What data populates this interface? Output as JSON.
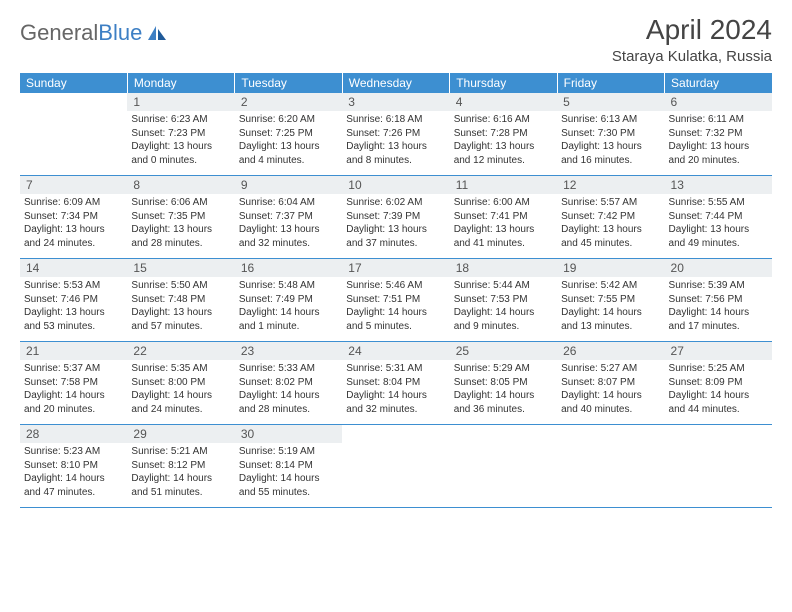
{
  "logo": {
    "text1": "General",
    "text2": "Blue"
  },
  "title": "April 2024",
  "location": "Staraya Kulatka, Russia",
  "headers": [
    "Sunday",
    "Monday",
    "Tuesday",
    "Wednesday",
    "Thursday",
    "Friday",
    "Saturday"
  ],
  "colors": {
    "headerBg": "#3d8fd1",
    "headerText": "#ffffff",
    "dayNumBg": "#eceff1",
    "rowBorder": "#3d8fd1",
    "logoBlue": "#3d7fc4"
  },
  "days": [
    {
      "n": "1",
      "sunrise": "Sunrise: 6:23 AM",
      "sunset": "Sunset: 7:23 PM",
      "daylight": "Daylight: 13 hours and 0 minutes."
    },
    {
      "n": "2",
      "sunrise": "Sunrise: 6:20 AM",
      "sunset": "Sunset: 7:25 PM",
      "daylight": "Daylight: 13 hours and 4 minutes."
    },
    {
      "n": "3",
      "sunrise": "Sunrise: 6:18 AM",
      "sunset": "Sunset: 7:26 PM",
      "daylight": "Daylight: 13 hours and 8 minutes."
    },
    {
      "n": "4",
      "sunrise": "Sunrise: 6:16 AM",
      "sunset": "Sunset: 7:28 PM",
      "daylight": "Daylight: 13 hours and 12 minutes."
    },
    {
      "n": "5",
      "sunrise": "Sunrise: 6:13 AM",
      "sunset": "Sunset: 7:30 PM",
      "daylight": "Daylight: 13 hours and 16 minutes."
    },
    {
      "n": "6",
      "sunrise": "Sunrise: 6:11 AM",
      "sunset": "Sunset: 7:32 PM",
      "daylight": "Daylight: 13 hours and 20 minutes."
    },
    {
      "n": "7",
      "sunrise": "Sunrise: 6:09 AM",
      "sunset": "Sunset: 7:34 PM",
      "daylight": "Daylight: 13 hours and 24 minutes."
    },
    {
      "n": "8",
      "sunrise": "Sunrise: 6:06 AM",
      "sunset": "Sunset: 7:35 PM",
      "daylight": "Daylight: 13 hours and 28 minutes."
    },
    {
      "n": "9",
      "sunrise": "Sunrise: 6:04 AM",
      "sunset": "Sunset: 7:37 PM",
      "daylight": "Daylight: 13 hours and 32 minutes."
    },
    {
      "n": "10",
      "sunrise": "Sunrise: 6:02 AM",
      "sunset": "Sunset: 7:39 PM",
      "daylight": "Daylight: 13 hours and 37 minutes."
    },
    {
      "n": "11",
      "sunrise": "Sunrise: 6:00 AM",
      "sunset": "Sunset: 7:41 PM",
      "daylight": "Daylight: 13 hours and 41 minutes."
    },
    {
      "n": "12",
      "sunrise": "Sunrise: 5:57 AM",
      "sunset": "Sunset: 7:42 PM",
      "daylight": "Daylight: 13 hours and 45 minutes."
    },
    {
      "n": "13",
      "sunrise": "Sunrise: 5:55 AM",
      "sunset": "Sunset: 7:44 PM",
      "daylight": "Daylight: 13 hours and 49 minutes."
    },
    {
      "n": "14",
      "sunrise": "Sunrise: 5:53 AM",
      "sunset": "Sunset: 7:46 PM",
      "daylight": "Daylight: 13 hours and 53 minutes."
    },
    {
      "n": "15",
      "sunrise": "Sunrise: 5:50 AM",
      "sunset": "Sunset: 7:48 PM",
      "daylight": "Daylight: 13 hours and 57 minutes."
    },
    {
      "n": "16",
      "sunrise": "Sunrise: 5:48 AM",
      "sunset": "Sunset: 7:49 PM",
      "daylight": "Daylight: 14 hours and 1 minute."
    },
    {
      "n": "17",
      "sunrise": "Sunrise: 5:46 AM",
      "sunset": "Sunset: 7:51 PM",
      "daylight": "Daylight: 14 hours and 5 minutes."
    },
    {
      "n": "18",
      "sunrise": "Sunrise: 5:44 AM",
      "sunset": "Sunset: 7:53 PM",
      "daylight": "Daylight: 14 hours and 9 minutes."
    },
    {
      "n": "19",
      "sunrise": "Sunrise: 5:42 AM",
      "sunset": "Sunset: 7:55 PM",
      "daylight": "Daylight: 14 hours and 13 minutes."
    },
    {
      "n": "20",
      "sunrise": "Sunrise: 5:39 AM",
      "sunset": "Sunset: 7:56 PM",
      "daylight": "Daylight: 14 hours and 17 minutes."
    },
    {
      "n": "21",
      "sunrise": "Sunrise: 5:37 AM",
      "sunset": "Sunset: 7:58 PM",
      "daylight": "Daylight: 14 hours and 20 minutes."
    },
    {
      "n": "22",
      "sunrise": "Sunrise: 5:35 AM",
      "sunset": "Sunset: 8:00 PM",
      "daylight": "Daylight: 14 hours and 24 minutes."
    },
    {
      "n": "23",
      "sunrise": "Sunrise: 5:33 AM",
      "sunset": "Sunset: 8:02 PM",
      "daylight": "Daylight: 14 hours and 28 minutes."
    },
    {
      "n": "24",
      "sunrise": "Sunrise: 5:31 AM",
      "sunset": "Sunset: 8:04 PM",
      "daylight": "Daylight: 14 hours and 32 minutes."
    },
    {
      "n": "25",
      "sunrise": "Sunrise: 5:29 AM",
      "sunset": "Sunset: 8:05 PM",
      "daylight": "Daylight: 14 hours and 36 minutes."
    },
    {
      "n": "26",
      "sunrise": "Sunrise: 5:27 AM",
      "sunset": "Sunset: 8:07 PM",
      "daylight": "Daylight: 14 hours and 40 minutes."
    },
    {
      "n": "27",
      "sunrise": "Sunrise: 5:25 AM",
      "sunset": "Sunset: 8:09 PM",
      "daylight": "Daylight: 14 hours and 44 minutes."
    },
    {
      "n": "28",
      "sunrise": "Sunrise: 5:23 AM",
      "sunset": "Sunset: 8:10 PM",
      "daylight": "Daylight: 14 hours and 47 minutes."
    },
    {
      "n": "29",
      "sunrise": "Sunrise: 5:21 AM",
      "sunset": "Sunset: 8:12 PM",
      "daylight": "Daylight: 14 hours and 51 minutes."
    },
    {
      "n": "30",
      "sunrise": "Sunrise: 5:19 AM",
      "sunset": "Sunset: 8:14 PM",
      "daylight": "Daylight: 14 hours and 55 minutes."
    }
  ],
  "startWeekday": 1
}
